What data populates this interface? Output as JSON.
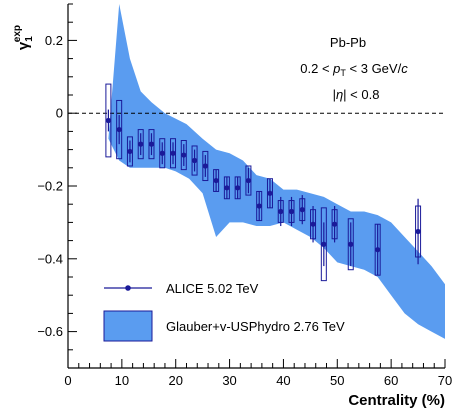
{
  "chart_data": {
    "type": "scatter",
    "xlabel": "Centrality (%)",
    "ylabel": "γ₁^exp",
    "ylabel_base": "γ",
    "ylabel_sub": "1",
    "ylabel_sup": "exp",
    "xlim": [
      0,
      70
    ],
    "ylim": [
      -0.7,
      0.3
    ],
    "x_ticks": [
      0,
      10,
      20,
      30,
      40,
      50,
      60,
      70
    ],
    "x_tick_labels": [
      "0",
      "10",
      "20",
      "30",
      "40",
      "50",
      "60",
      "70"
    ],
    "y_ticks": [
      -0.6,
      -0.4,
      -0.2,
      0,
      0.2
    ],
    "y_tick_labels": [
      "−0.6",
      "−0.4",
      "−0.2",
      "0",
      "0.2"
    ],
    "zero_line": true,
    "annotations": {
      "system": "Pb-Pb",
      "pt_prefix": "0.2 < ",
      "pt_symbol": "p",
      "pt_sub": "T",
      "pt_suffix": " < 3 GeV/",
      "pt_c": "c",
      "eta_prefix": "|",
      "eta_symbol": "η",
      "eta_suffix": "| < 0.8"
    },
    "legend": [
      {
        "name": "ALICE 5.02 TeV",
        "kind": "points"
      },
      {
        "name": "Glauber+v-USPhydro 2.76 TeV",
        "kind": "band"
      }
    ],
    "series": [
      {
        "name": "ALICE 5.02 TeV",
        "color": "#1a1a99",
        "points": [
          {
            "x": 7.5,
            "y": -0.02,
            "stat": 0.03,
            "sys": 0.1
          },
          {
            "x": 9.5,
            "y": -0.045,
            "stat": 0.04,
            "sys": 0.08
          },
          {
            "x": 11.5,
            "y": -0.105,
            "stat": 0.03,
            "sys": 0.04
          },
          {
            "x": 13.5,
            "y": -0.085,
            "stat": 0.03,
            "sys": 0.04
          },
          {
            "x": 15.5,
            "y": -0.085,
            "stat": 0.03,
            "sys": 0.04
          },
          {
            "x": 17.5,
            "y": -0.11,
            "stat": 0.03,
            "sys": 0.04
          },
          {
            "x": 19.5,
            "y": -0.11,
            "stat": 0.03,
            "sys": 0.04
          },
          {
            "x": 21.5,
            "y": -0.115,
            "stat": 0.03,
            "sys": 0.04
          },
          {
            "x": 23.5,
            "y": -0.13,
            "stat": 0.03,
            "sys": 0.04
          },
          {
            "x": 25.5,
            "y": -0.145,
            "stat": 0.03,
            "sys": 0.04
          },
          {
            "x": 27.5,
            "y": -0.185,
            "stat": 0.03,
            "sys": 0.03
          },
          {
            "x": 29.5,
            "y": -0.205,
            "stat": 0.03,
            "sys": 0.03
          },
          {
            "x": 31.5,
            "y": -0.205,
            "stat": 0.03,
            "sys": 0.03
          },
          {
            "x": 33.5,
            "y": -0.185,
            "stat": 0.035,
            "sys": 0.04
          },
          {
            "x": 35.5,
            "y": -0.255,
            "stat": 0.04,
            "sys": 0.04
          },
          {
            "x": 37.5,
            "y": -0.22,
            "stat": 0.04,
            "sys": 0.04
          },
          {
            "x": 39.5,
            "y": -0.27,
            "stat": 0.04,
            "sys": 0.03
          },
          {
            "x": 41.5,
            "y": -0.27,
            "stat": 0.04,
            "sys": 0.03
          },
          {
            "x": 43.5,
            "y": -0.265,
            "stat": 0.04,
            "sys": 0.03
          },
          {
            "x": 45.5,
            "y": -0.305,
            "stat": 0.05,
            "sys": 0.04
          },
          {
            "x": 47.5,
            "y": -0.36,
            "stat": 0.06,
            "sys": 0.1
          },
          {
            "x": 49.5,
            "y": -0.305,
            "stat": 0.05,
            "sys": 0.04
          },
          {
            "x": 52.5,
            "y": -0.36,
            "stat": 0.06,
            "sys": 0.07
          },
          {
            "x": 57.5,
            "y": -0.375,
            "stat": 0.07,
            "sys": 0.07
          },
          {
            "x": 65.0,
            "y": -0.325,
            "stat": 0.09,
            "sys": 0.07
          }
        ]
      },
      {
        "name": "Glauber+v-USPhydro 2.76 TeV",
        "color": "#5a9cf0",
        "band_upper": [
          [
            9.5,
            0.3
          ],
          [
            11.5,
            0.15
          ],
          [
            13.5,
            0.06
          ],
          [
            15.5,
            0.03
          ],
          [
            18,
            0.0
          ],
          [
            22,
            -0.03
          ],
          [
            25,
            -0.07
          ],
          [
            27.5,
            -0.1
          ],
          [
            30,
            -0.11
          ],
          [
            32.5,
            -0.13
          ],
          [
            35,
            -0.17
          ],
          [
            37.5,
            -0.18
          ],
          [
            40,
            -0.21
          ],
          [
            42.5,
            -0.21
          ],
          [
            45,
            -0.22
          ],
          [
            47.5,
            -0.23
          ],
          [
            50,
            -0.25
          ],
          [
            52.5,
            -0.27
          ],
          [
            55,
            -0.27
          ],
          [
            57.5,
            -0.28
          ],
          [
            60,
            -0.3
          ],
          [
            62.5,
            -0.34
          ],
          [
            65,
            -0.38
          ],
          [
            67.5,
            -0.42
          ],
          [
            70,
            -0.47
          ]
        ],
        "band_lower": [
          [
            7.5,
            -0.07
          ],
          [
            9.5,
            -0.13
          ],
          [
            11.5,
            -0.15
          ],
          [
            15,
            -0.15
          ],
          [
            18,
            -0.15
          ],
          [
            20,
            -0.16
          ],
          [
            22.5,
            -0.18
          ],
          [
            25,
            -0.22
          ],
          [
            27.5,
            -0.34
          ],
          [
            30,
            -0.3
          ],
          [
            32.5,
            -0.3
          ],
          [
            35,
            -0.31
          ],
          [
            37.5,
            -0.31
          ],
          [
            40,
            -0.3
          ],
          [
            42.5,
            -0.32
          ],
          [
            45,
            -0.34
          ],
          [
            47.5,
            -0.37
          ],
          [
            50,
            -0.41
          ],
          [
            52.5,
            -0.42
          ],
          [
            55,
            -0.43
          ],
          [
            57.5,
            -0.45
          ],
          [
            60,
            -0.5
          ],
          [
            62.5,
            -0.55
          ],
          [
            65,
            -0.58
          ],
          [
            67.5,
            -0.6
          ],
          [
            70,
            -0.62
          ]
        ]
      }
    ]
  }
}
